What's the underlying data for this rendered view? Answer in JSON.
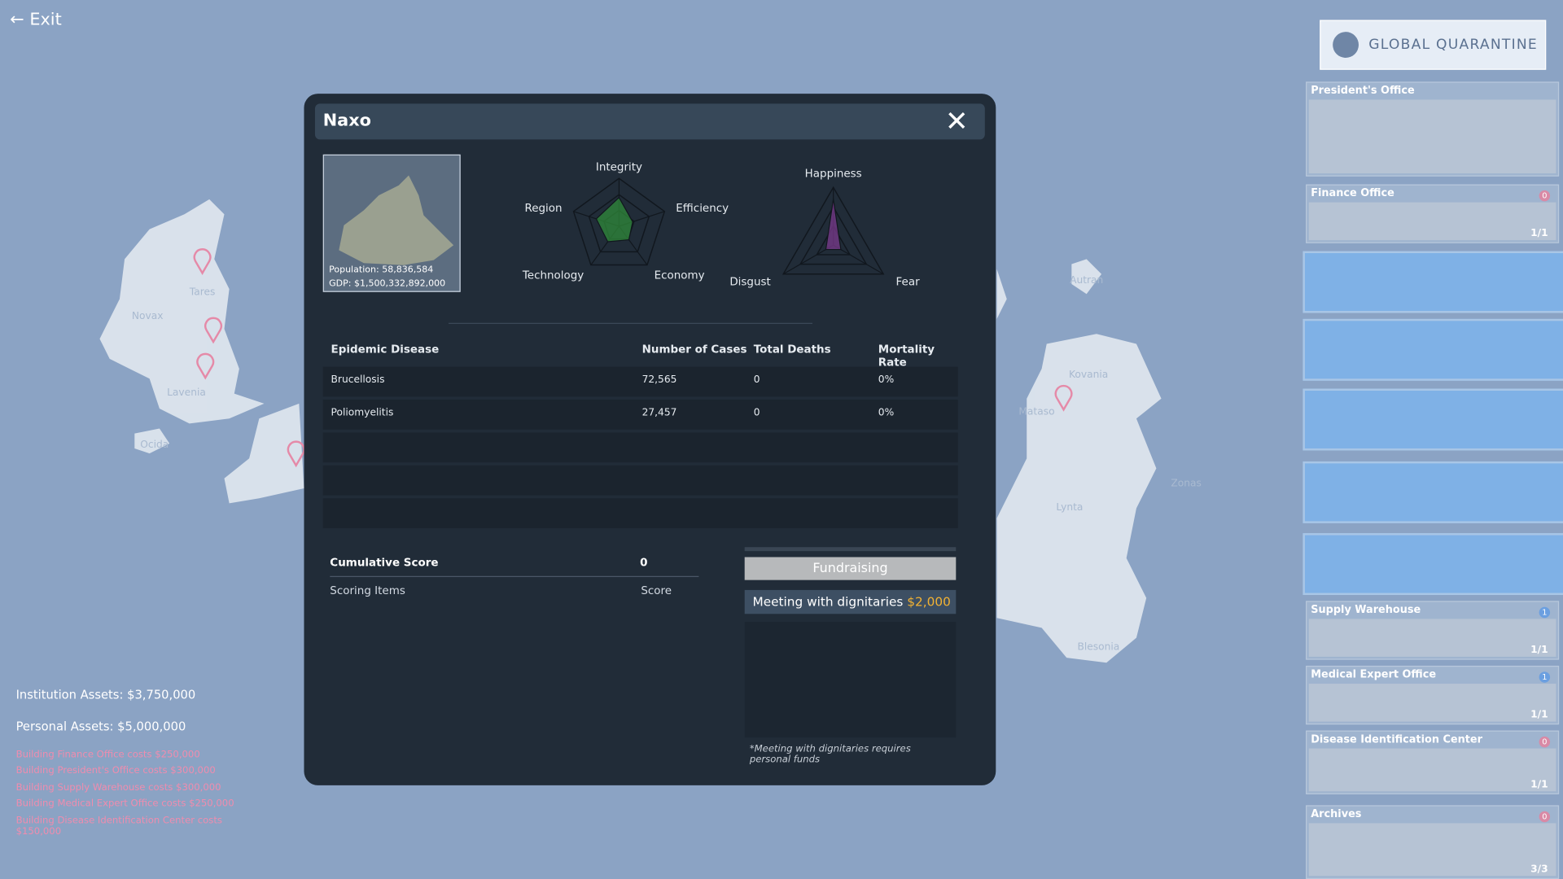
{
  "exit": "Exit",
  "quarantine": "GLOBAL QUARANTINE",
  "map_labels": [
    "Tares",
    "Novax",
    "Lavenia",
    "Ocida",
    "Autran",
    "Kovania",
    "Mataso",
    "Zonas",
    "Lynta",
    "Blesonia"
  ],
  "assets": {
    "institution_label": "Institution Assets:",
    "institution": "$3,750,000",
    "personal_label": "Personal Assets:",
    "personal": "$5,000,000"
  },
  "costs": [
    "Building Finance Office costs $250,000",
    "Building President's Office costs $300,000",
    "Building Supply Warehouse costs $300,000",
    "Building Medical Expert Office costs $250,000",
    "Building Disease Identification Center costs $150,000"
  ],
  "buildings_top": [
    {
      "name": "President's Office"
    },
    {
      "name": "Finance Office",
      "badge": "0",
      "capacity": "1/1"
    }
  ],
  "buildings_bottom": [
    {
      "name": "Supply Warehouse",
      "badge": "1",
      "capacity": "1/1"
    },
    {
      "name": "Medical Expert Office",
      "badge": "1",
      "capacity": "1/1"
    },
    {
      "name": "Disease Identification Center",
      "badge": "0",
      "capacity": "1/1"
    },
    {
      "name": "Archives",
      "badge": "0",
      "capacity": "3/3"
    }
  ],
  "region": {
    "name": "Naxo",
    "population": "Population: 58,836,584",
    "gdp": "GDP: $1,500,332,892,000"
  },
  "radar_traits": {
    "axes": [
      "Integrity",
      "Efficiency",
      "Economy",
      "Technology",
      "Region"
    ],
    "values": [
      0.6,
      0.3,
      0.35,
      0.4,
      0.5
    ]
  },
  "radar_mood": {
    "axes": [
      "Happiness",
      "Fear",
      "Disgust"
    ],
    "values": [
      0.8,
      0.15,
      0.15
    ]
  },
  "table": {
    "headers": [
      "Epidemic Disease",
      "Number of Cases",
      "Total Deaths",
      "Mortality Rate"
    ],
    "rows": [
      [
        "Brucellosis",
        "72,565",
        "0",
        "0%"
      ],
      [
        "Poliomyelitis",
        "27,457",
        "0",
        "0%"
      ]
    ]
  },
  "score": {
    "label": "Cumulative Score",
    "value": 0,
    "items": "Scoring Items",
    "score": "Score"
  },
  "actions": {
    "fundraising": "Fundraising",
    "meeting": "Meeting with dignitaries",
    "meeting_cost": "$2,000",
    "note": "*Meeting with dignitaries requires personal funds"
  }
}
